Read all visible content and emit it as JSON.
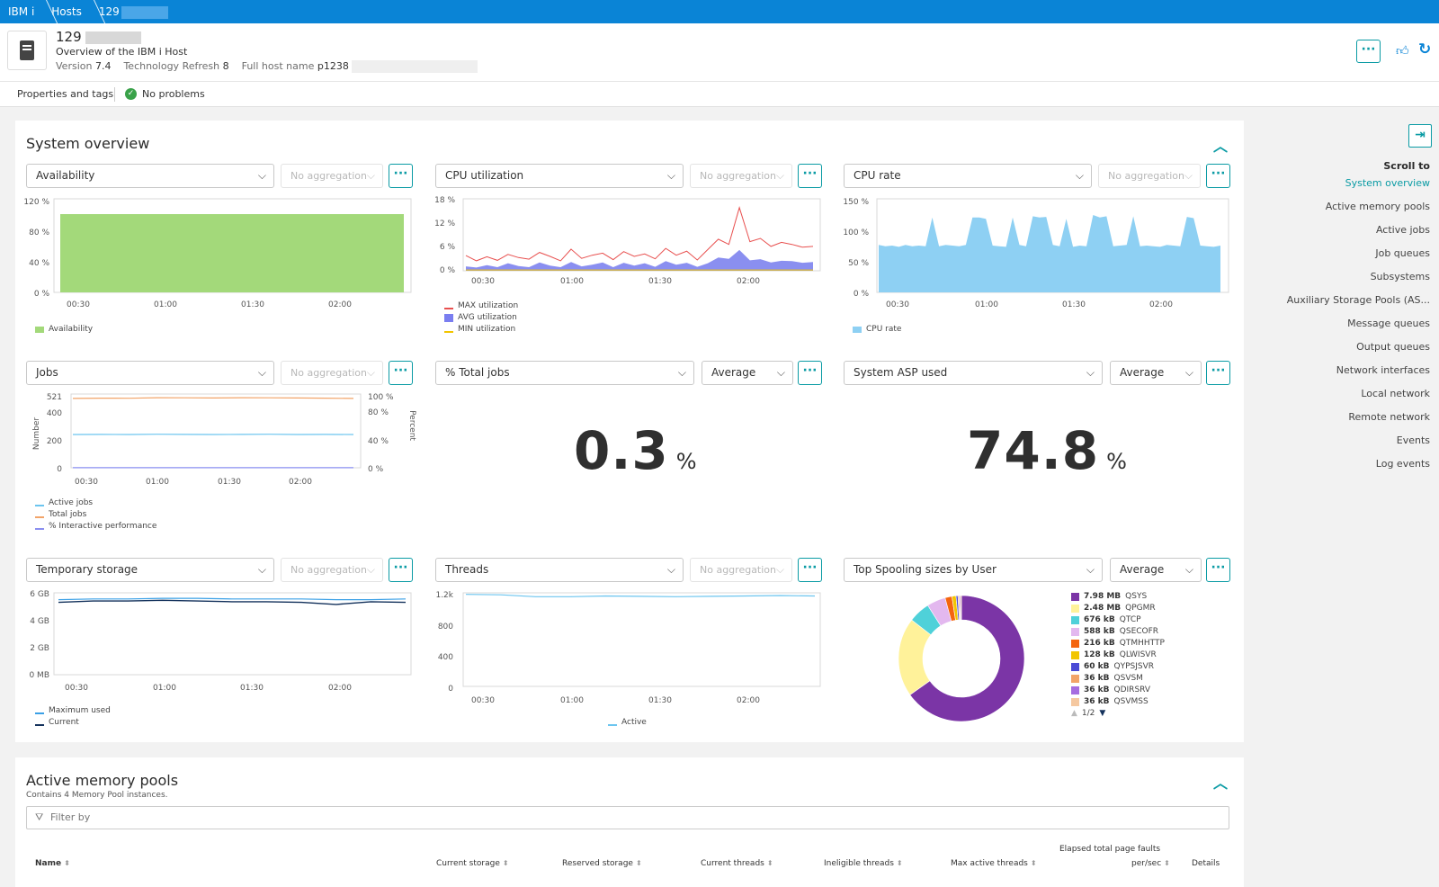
{
  "breadcrumb": [
    "IBM i",
    "Hosts",
    "129"
  ],
  "header": {
    "title": "129",
    "subtitle": "Overview of the IBM i Host",
    "version_label": "Version",
    "version_value": "7.4",
    "tr_label": "Technology Refresh",
    "tr_value": "8",
    "fqdn_label": "Full host name",
    "fqdn_value": "p1238"
  },
  "propbar": {
    "properties": "Properties and tags",
    "problems": "No problems"
  },
  "system_overview": {
    "title": "System overview",
    "tiles": [
      {
        "metric": "Availability",
        "aggregation": "No aggregation",
        "y_ticks": [
          "120 %",
          "80 %",
          "40 %",
          "0 %"
        ],
        "x_ticks": [
          "00:30",
          "01:00",
          "01:30",
          "02:00"
        ],
        "legend": [
          "Availability"
        ]
      },
      {
        "metric": "CPU utilization",
        "aggregation": "No aggregation",
        "y_ticks": [
          "18 %",
          "12 %",
          "6 %",
          "0 %"
        ],
        "x_ticks": [
          "00:30",
          "01:00",
          "01:30",
          "02:00"
        ],
        "legend": [
          "MAX utilization",
          "AVG utilization",
          "MIN utilization"
        ]
      },
      {
        "metric": "CPU rate",
        "aggregation": "No aggregation",
        "y_ticks": [
          "150 %",
          "100 %",
          "50 %",
          "0 %"
        ],
        "x_ticks": [
          "00:30",
          "01:00",
          "01:30",
          "02:00"
        ],
        "legend": [
          "CPU rate"
        ]
      },
      {
        "metric": "Jobs",
        "aggregation": "No aggregation",
        "y_ticks": [
          "521",
          "400",
          "200",
          "0"
        ],
        "y2_ticks": [
          "100 %",
          "80 %",
          "40 %",
          "0 %"
        ],
        "y_axis": "Number",
        "y2_axis": "Percent",
        "x_ticks": [
          "00:30",
          "01:00",
          "01:30",
          "02:00"
        ],
        "legend": [
          "Active jobs",
          "Total jobs",
          "% Interactive performance"
        ]
      },
      {
        "metric": "% Total jobs",
        "aggregation": "Average",
        "value": "0.3",
        "unit": "%"
      },
      {
        "metric": "System ASP used",
        "aggregation": "Average",
        "value": "74.8",
        "unit": "%"
      },
      {
        "metric": "Temporary storage",
        "aggregation": "No aggregation",
        "y_ticks": [
          "6 GB",
          "4 GB",
          "2 GB",
          "0 MB"
        ],
        "x_ticks": [
          "00:30",
          "01:00",
          "01:30",
          "02:00"
        ],
        "legend": [
          "Maximum used",
          "Current"
        ]
      },
      {
        "metric": "Threads",
        "aggregation": "No aggregation",
        "y_ticks": [
          "1.2k",
          "800",
          "400",
          "0"
        ],
        "x_ticks": [
          "00:30",
          "01:00",
          "01:30",
          "02:00"
        ],
        "legend": [
          "Active"
        ]
      },
      {
        "metric": "Top Spooling sizes by User",
        "aggregation": "Average"
      }
    ]
  },
  "chart_data": [
    {
      "type": "area",
      "title": "Availability",
      "x": [
        "00:15",
        "02:35"
      ],
      "series": [
        {
          "name": "Availability",
          "values": [
            100,
            100
          ]
        }
      ],
      "ylim": [
        0,
        120
      ]
    },
    {
      "type": "line",
      "title": "CPU utilization",
      "ylim": [
        0,
        18
      ],
      "series": [
        {
          "name": "MAX utilization",
          "values": [
            3.8,
            2.5,
            3.5,
            2.6,
            4.1,
            3.3,
            2.9,
            4.6,
            3.6,
            2.5,
            5.4,
            3.1,
            3.9,
            4.4,
            2.8,
            4.8,
            3.6,
            4.2,
            3.0,
            5.6,
            3.9,
            4.9,
            2.7,
            5.3,
            7.9,
            6.6,
            15.8,
            7.3,
            8.1,
            6.1,
            7.1,
            6.6,
            5.9,
            6.1
          ]
        },
        {
          "name": "AVG utilization",
          "values": [
            1.1,
            0.8,
            1.4,
            0.9,
            1.9,
            1.2,
            0.9,
            2.1,
            1.3,
            0.9,
            2.2,
            1.1,
            1.5,
            2.1,
            0.9,
            2.0,
            1.3,
            1.9,
            1.0,
            2.4,
            1.5,
            2.0,
            1.0,
            1.9,
            3.3,
            3.0,
            5.2,
            2.6,
            2.9,
            2.1,
            2.5,
            2.4,
            2.0,
            2.2
          ]
        },
        {
          "name": "MIN utilization",
          "values": [
            0.2,
            0.2,
            0.2,
            0.2,
            0.2,
            0.2,
            0.2,
            0.2,
            0.2,
            0.2,
            0.2,
            0.2,
            0.2,
            0.2,
            0.2,
            0.2,
            0.2,
            0.2,
            0.2,
            0.2,
            0.2,
            0.2,
            0.2,
            0.2,
            0.2,
            0.2,
            0.2,
            0.2,
            0.2,
            0.2,
            0.2,
            0.2,
            0.2,
            0.2
          ]
        }
      ]
    },
    {
      "type": "area",
      "title": "CPU rate",
      "ylim": [
        0,
        150
      ],
      "series": [
        {
          "name": "CPU rate",
          "values": [
            76,
            74,
            75,
            73,
            76,
            74,
            75,
            74,
            120,
            74,
            76,
            75,
            74,
            76,
            120,
            120,
            118,
            75,
            74,
            73,
            120,
            76,
            74,
            122,
            120,
            121,
            76,
            74,
            118,
            73,
            75,
            74,
            124,
            120,
            122,
            74,
            75,
            76,
            122,
            74,
            75,
            74,
            73,
            76,
            75,
            74,
            121,
            119,
            75,
            74,
            73,
            75
          ]
        }
      ]
    },
    {
      "type": "line",
      "title": "Jobs",
      "ylim": [
        0,
        521
      ],
      "series": [
        {
          "name": "Active jobs",
          "values": [
            235,
            236,
            235,
            237,
            236,
            235,
            236,
            237,
            235,
            236,
            235
          ]
        },
        {
          "name": "Total jobs",
          "values": [
            490,
            492,
            491,
            495,
            494,
            493,
            495,
            494,
            493,
            492,
            490
          ]
        },
        {
          "name": "% Interactive performance",
          "values": [
            0,
            0,
            0,
            0,
            0,
            0,
            0,
            0,
            0,
            0,
            0
          ]
        }
      ]
    },
    {
      "type": "line",
      "title": "Temporary storage",
      "ylim": [
        0,
        6
      ],
      "series": [
        {
          "name": "Maximum used",
          "values": [
            5.5,
            5.55,
            5.55,
            5.6,
            5.6,
            5.55,
            5.55,
            5.55,
            5.5,
            5.5,
            5.55
          ]
        },
        {
          "name": "Current",
          "values": [
            5.3,
            5.4,
            5.4,
            5.45,
            5.4,
            5.35,
            5.35,
            5.3,
            5.15,
            5.35,
            5.3
          ]
        }
      ]
    },
    {
      "type": "line",
      "title": "Threads",
      "ylim": [
        0,
        1200
      ],
      "series": [
        {
          "name": "Active",
          "values": [
            1180,
            1175,
            1150,
            1150,
            1160,
            1155,
            1150,
            1155,
            1160,
            1165,
            1160
          ]
        }
      ]
    },
    {
      "type": "pie",
      "title": "Top Spooling sizes by User",
      "categories": [
        "QSYS",
        "QPGMR",
        "QTCP",
        "QSECOFR",
        "QTMHHTTP",
        "QLWISVR",
        "QYPSJSVR",
        "QSVSM",
        "QDIRSRV",
        "QSVMSS"
      ],
      "values": [
        7.98,
        2.48,
        0.676,
        0.588,
        0.216,
        0.128,
        0.06,
        0.036,
        0.036,
        0.036
      ],
      "labels": [
        "7.98 MB",
        "2.48 MB",
        "676 kB",
        "588 kB",
        "216 kB",
        "128 kB",
        "60 kB",
        "36 kB",
        "36 kB",
        "36 kB"
      ],
      "colors": [
        "#7b35a6",
        "#fff29a",
        "#4fd1d9",
        "#e3b8ef",
        "#f4650f",
        "#f2c500",
        "#4b4bd6",
        "#f2a469",
        "#a66de0",
        "#f5c8a0"
      ],
      "pager": "1/2"
    }
  ],
  "side_nav": {
    "title": "Scroll to",
    "items": [
      "System overview",
      "Active memory pools",
      "Active jobs",
      "Job queues",
      "Subsystems",
      "Auxiliary Storage Pools (AS...",
      "Message queues",
      "Output queues",
      "Network interfaces",
      "Local network",
      "Remote network",
      "Events",
      "Log events"
    ]
  },
  "memory_pools": {
    "title": "Active memory pools",
    "subtitle": "Contains 4 Memory Pool instances.",
    "filter_placeholder": "Filter by",
    "columns": [
      "Name",
      "Current storage",
      "Reserved storage",
      "Current threads",
      "Ineligible threads",
      "Max active threads",
      "Elapsed total page faults",
      "per/sec",
      "Details"
    ]
  },
  "colors": {
    "accent": "#0a9ba4",
    "breadcrumb": "#0a84d6",
    "availability": "#a3d97a",
    "cpu_rate": "#8ed0f3"
  }
}
